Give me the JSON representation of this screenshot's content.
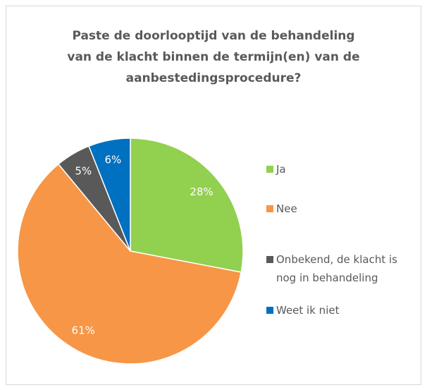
{
  "chart_data": {
    "type": "pie",
    "title": "Paste de doorlooptijd van de behandeling van de klacht binnen de termijn(en) van de aanbestedingsprocedure?",
    "categories": [
      "Ja",
      "Nee",
      "Onbekend, de klacht is nog in behandeling",
      "Weet ik niet"
    ],
    "values": [
      28,
      61,
      5,
      6
    ],
    "value_labels": [
      "28%",
      "61%",
      "5%",
      "6%"
    ],
    "colors": [
      "#92d050",
      "#f79646",
      "#595959",
      "#0070c0"
    ],
    "legend": "right"
  }
}
